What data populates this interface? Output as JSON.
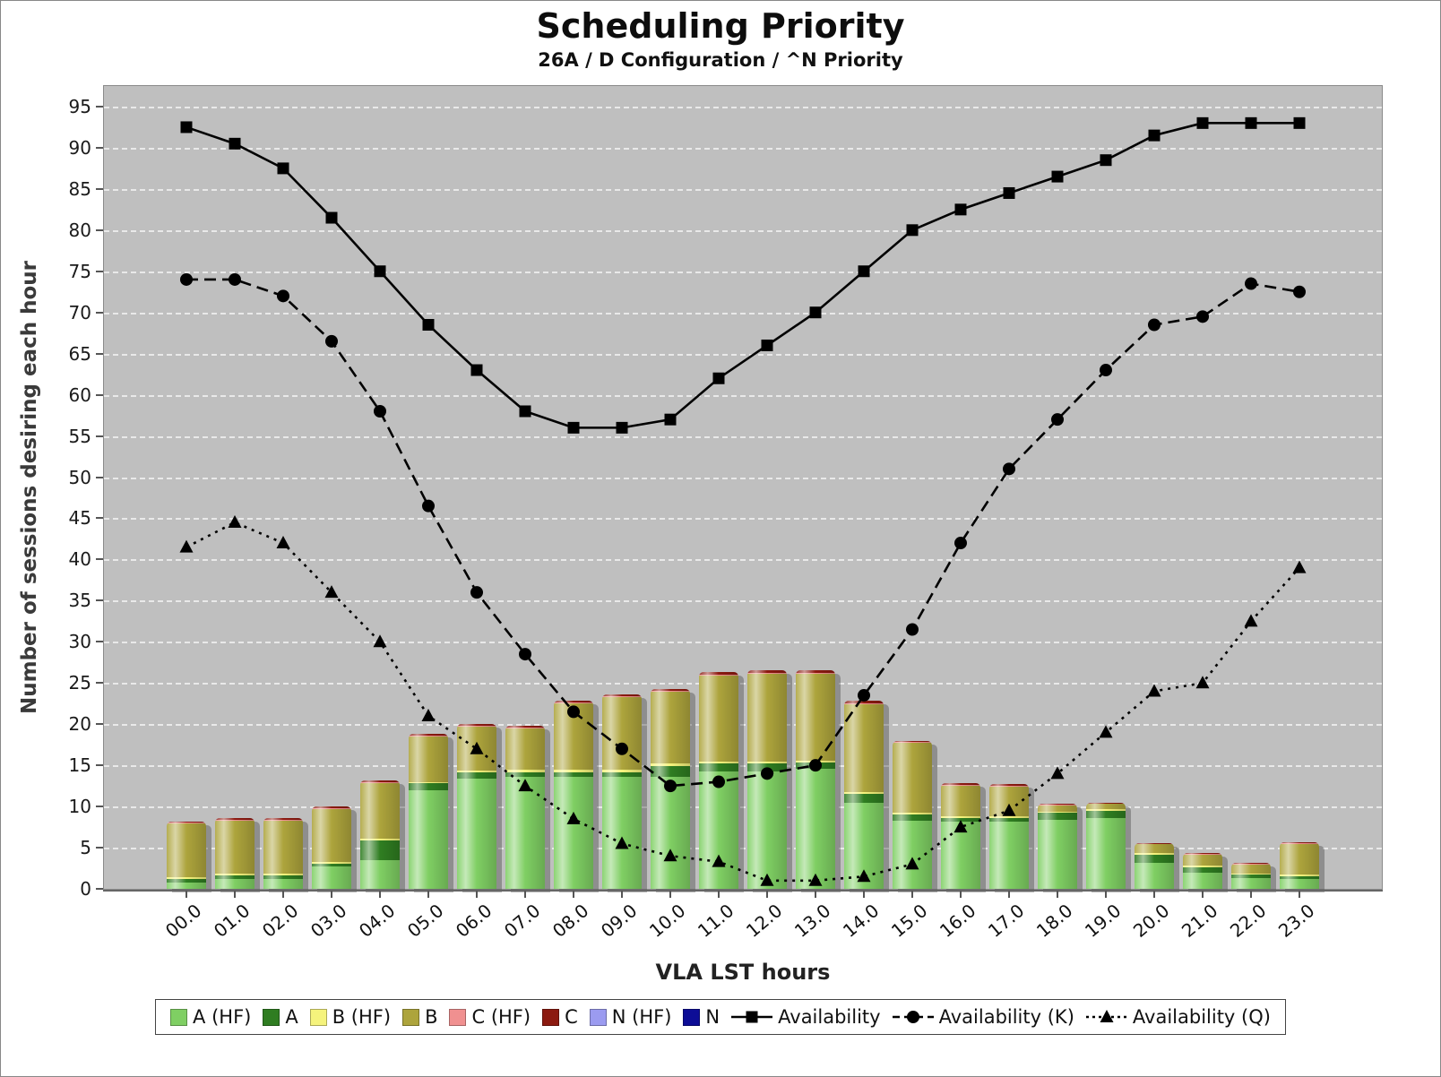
{
  "chart_data": {
    "type": "combo-stacked-bar-line",
    "title": "Scheduling Priority",
    "subtitle": "26A / D Configuration / ^N Priority",
    "xlabel": "VLA LST hours",
    "ylabel": "Number of sessions desiring each hour",
    "ylim": [
      0,
      97.5
    ],
    "yticks": [
      0,
      5,
      10,
      15,
      20,
      25,
      30,
      35,
      40,
      45,
      50,
      55,
      60,
      65,
      70,
      75,
      80,
      85,
      90,
      95
    ],
    "categories": [
      "00.0",
      "01.0",
      "02.0",
      "03.0",
      "04.0",
      "05.0",
      "06.0",
      "07.0",
      "08.0",
      "09.0",
      "10.0",
      "11.0",
      "12.0",
      "13.0",
      "14.0",
      "15.0",
      "16.0",
      "17.0",
      "18.0",
      "19.0",
      "20.0",
      "21.0",
      "22.0",
      "23.0"
    ],
    "plot_background": "#bfbfbf",
    "gridlines": "white-dashed-horizontal",
    "legend_position": "bottom",
    "bar_series": [
      {
        "name": "A (HF)",
        "color": "#7fcf63",
        "values": [
          0.8,
          1.2,
          1.2,
          2.7,
          3.5,
          12,
          13.4,
          13.6,
          13.6,
          13.6,
          13.6,
          14.3,
          14.3,
          14.6,
          10.4,
          8.3,
          8.2,
          8.2,
          8.4,
          8.6,
          3.2,
          2.0,
          1.3,
          1.2
        ]
      },
      {
        "name": "A",
        "color": "#2f7d21",
        "values": [
          0.4,
          0.4,
          0.4,
          0.4,
          2.4,
          0.8,
          0.7,
          0.6,
          0.6,
          0.6,
          1.3,
          0.9,
          0.9,
          0.7,
          1.1,
          0.7,
          0.4,
          0.4,
          0.8,
          0.9,
          0.9,
          0.6,
          0.4,
          0.3
        ]
      },
      {
        "name": "B (HF)",
        "color": "#f5f37c",
        "values": [
          0.2,
          0.2,
          0.2,
          0.2,
          0.2,
          0.2,
          0.3,
          0.3,
          0.3,
          0.3,
          0.3,
          0.3,
          0.3,
          0.3,
          0.3,
          0.2,
          0.2,
          0.2,
          0.2,
          0.2,
          0.2,
          0.2,
          0.2,
          0.2
        ]
      },
      {
        "name": "B",
        "color": "#ada43c",
        "values": [
          6.5,
          6.5,
          6.5,
          6.4,
          6.8,
          5.5,
          5.3,
          5.0,
          8.0,
          8.8,
          8.8,
          10.4,
          10.6,
          10.5,
          10.6,
          8.5,
          3.7,
          3.6,
          0.7,
          0.6,
          1.1,
          1.3,
          1.1,
          3.7
        ]
      },
      {
        "name": "C (HF)",
        "color": "#f09090",
        "values": [
          0.1,
          0.1,
          0.1,
          0.1,
          0.1,
          0.1,
          0.1,
          0.1,
          0.1,
          0.1,
          0.1,
          0.1,
          0.1,
          0.1,
          0.1,
          0.1,
          0.1,
          0.1,
          0.1,
          0.1,
          0.1,
          0.1,
          0.1,
          0.1
        ]
      },
      {
        "name": "C",
        "color": "#8c1a10",
        "values": [
          0.2,
          0.2,
          0.2,
          0.2,
          0.2,
          0.2,
          0.2,
          0.2,
          0.2,
          0.2,
          0.2,
          0.3,
          0.3,
          0.3,
          0.3,
          0.2,
          0.2,
          0.2,
          0.1,
          0.1,
          0.1,
          0.1,
          0.1,
          0.2
        ]
      },
      {
        "name": "N (HF)",
        "color": "#9b9bf0",
        "values": [
          0,
          0,
          0,
          0,
          0,
          0,
          0,
          0,
          0,
          0,
          0,
          0,
          0,
          0,
          0,
          0,
          0,
          0,
          0,
          0,
          0,
          0,
          0,
          0
        ]
      },
      {
        "name": "N",
        "color": "#0d0d96",
        "values": [
          0,
          0,
          0,
          0,
          0,
          0,
          0,
          0,
          0,
          0,
          0,
          0,
          0,
          0,
          0,
          0,
          0,
          0,
          0,
          0,
          0,
          0,
          0,
          0
        ]
      }
    ],
    "line_series": [
      {
        "name": "Availability",
        "marker": "square",
        "dash": "solid",
        "color": "#000000",
        "values": [
          92.5,
          90.5,
          87.5,
          81.5,
          75,
          68.5,
          63,
          58,
          56,
          56,
          57,
          62,
          66,
          70,
          75,
          80,
          82.5,
          84.5,
          86.5,
          88.5,
          91.5,
          93,
          93,
          93
        ]
      },
      {
        "name": "Availability (K)",
        "marker": "circle",
        "dash": "dashed",
        "color": "#000000",
        "values": [
          74,
          74,
          72,
          66.5,
          58,
          46.5,
          36,
          28.5,
          21.5,
          17,
          12.5,
          13,
          14,
          15,
          23.5,
          31.5,
          42,
          51,
          57,
          63,
          68.5,
          69.5,
          73.5,
          72.5
        ]
      },
      {
        "name": "Availability (Q)",
        "marker": "triangle",
        "dash": "dotted",
        "color": "#000000",
        "values": [
          41.5,
          44.5,
          42,
          36,
          30,
          21,
          17,
          12.5,
          8.5,
          5.5,
          4,
          3.3,
          1,
          1,
          1.5,
          3,
          7.5,
          9.5,
          14,
          19,
          24,
          25,
          32.5,
          39
        ]
      }
    ]
  }
}
